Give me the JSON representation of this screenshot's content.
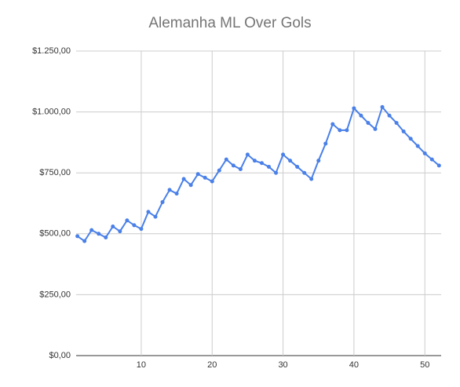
{
  "chart_data": {
    "type": "line",
    "title": "Alemanha ML Over Gols",
    "x": [
      1,
      2,
      3,
      4,
      5,
      6,
      7,
      8,
      9,
      10,
      11,
      12,
      13,
      14,
      15,
      16,
      17,
      18,
      19,
      20,
      21,
      22,
      23,
      24,
      25,
      26,
      27,
      28,
      29,
      30,
      31,
      32,
      33,
      34,
      35,
      36,
      37,
      38,
      39,
      40,
      41,
      42,
      43,
      44,
      45,
      46,
      47,
      48,
      49,
      50,
      51,
      52
    ],
    "series": [
      {
        "name": "Alemanha ML Over Gols",
        "color": "#4a80e8",
        "values": [
          490,
          470,
          515,
          500,
          485,
          530,
          510,
          555,
          535,
          520,
          590,
          570,
          630,
          680,
          665,
          725,
          700,
          745,
          730,
          715,
          760,
          805,
          780,
          765,
          825,
          800,
          790,
          775,
          750,
          825,
          800,
          775,
          750,
          725,
          800,
          870,
          950,
          925,
          925,
          1015,
          985,
          955,
          930,
          1020,
          985,
          955,
          920,
          890,
          860,
          830,
          805,
          780
        ]
      }
    ],
    "xlim": [
      0.82,
      52.3
    ],
    "xticks": [
      10,
      20,
      30,
      40,
      50
    ],
    "ylim": [
      0,
      1250
    ],
    "yticks": [
      {
        "value": 0,
        "label": "$0,00"
      },
      {
        "value": 250,
        "label": "$250,00"
      },
      {
        "value": 500,
        "label": "$500,00"
      },
      {
        "value": 750,
        "label": "$750,00"
      },
      {
        "value": 1000,
        "label": "$1.000,00"
      },
      {
        "value": 1250,
        "label": "$1.250,00"
      }
    ],
    "grid": true
  }
}
